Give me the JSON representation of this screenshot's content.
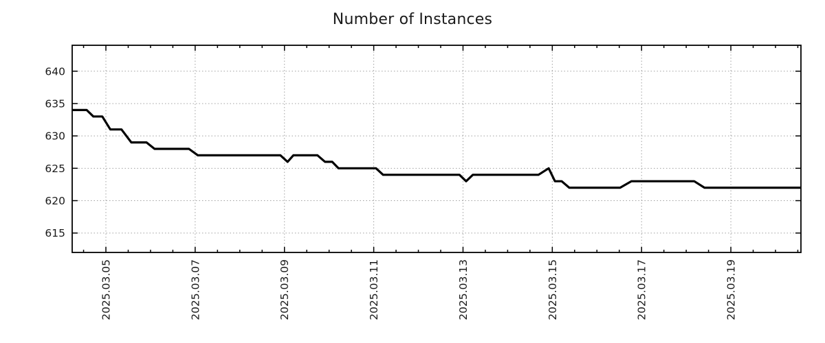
{
  "chart_data": {
    "type": "line",
    "title": "Number of Instances",
    "xlabel": "",
    "ylabel": "",
    "legend": "none",
    "grid": "dotted",
    "x_unit": "days since 2025-03-04 00:00",
    "xlim": [
      0.245,
      16.57
    ],
    "ylim": [
      612,
      644
    ],
    "y_ticks": [
      615,
      620,
      625,
      630,
      635,
      640
    ],
    "x_major_ticks": [
      {
        "x": 1,
        "label": "2025.03.05"
      },
      {
        "x": 3,
        "label": "2025.03.07"
      },
      {
        "x": 5,
        "label": "2025.03.09"
      },
      {
        "x": 7,
        "label": "2025.03.11"
      },
      {
        "x": 9,
        "label": "2025.03.13"
      },
      {
        "x": 11,
        "label": "2025.03.15"
      },
      {
        "x": 13,
        "label": "2025.03.17"
      },
      {
        "x": 15,
        "label": "2025.03.19"
      }
    ],
    "x_minor_step": 0.5,
    "line_color": "#000000",
    "grid_color": "#a0a0a0",
    "frame_color": "#000000",
    "text_color": "#1a1a1a",
    "series": [
      {
        "name": "instances",
        "points": [
          [
            0.245,
            634
          ],
          [
            0.57,
            634
          ],
          [
            0.72,
            633
          ],
          [
            0.92,
            633
          ],
          [
            1.1,
            631
          ],
          [
            1.35,
            631
          ],
          [
            1.57,
            629
          ],
          [
            1.91,
            629
          ],
          [
            2.09,
            628
          ],
          [
            2.86,
            628
          ],
          [
            3.06,
            627
          ],
          [
            4.91,
            627
          ],
          [
            5.07,
            626
          ],
          [
            5.2,
            627
          ],
          [
            5.74,
            627
          ],
          [
            5.91,
            626
          ],
          [
            6.07,
            626
          ],
          [
            6.21,
            625
          ],
          [
            7.05,
            625
          ],
          [
            7.21,
            624
          ],
          [
            8.92,
            624
          ],
          [
            9.07,
            623
          ],
          [
            9.22,
            624
          ],
          [
            10.69,
            624
          ],
          [
            10.92,
            625
          ],
          [
            11.06,
            623
          ],
          [
            11.21,
            623
          ],
          [
            11.38,
            622
          ],
          [
            12.52,
            622
          ],
          [
            12.77,
            623
          ],
          [
            14.18,
            623
          ],
          [
            14.41,
            622
          ],
          [
            16.57,
            622
          ]
        ]
      }
    ]
  }
}
